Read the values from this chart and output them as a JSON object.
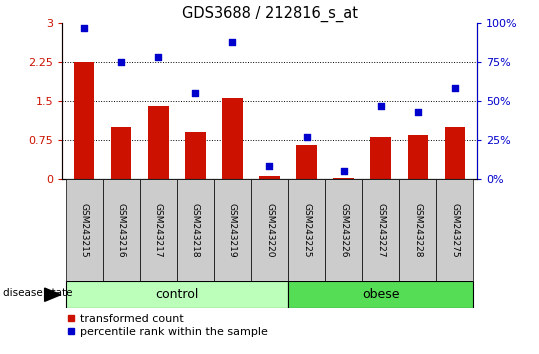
{
  "title": "GDS3688 / 212816_s_at",
  "samples": [
    "GSM243215",
    "GSM243216",
    "GSM243217",
    "GSM243218",
    "GSM243219",
    "GSM243220",
    "GSM243225",
    "GSM243226",
    "GSM243227",
    "GSM243228",
    "GSM243275"
  ],
  "transformed_count": [
    2.25,
    1.0,
    1.4,
    0.9,
    1.55,
    0.05,
    0.65,
    0.02,
    0.8,
    0.85,
    1.0
  ],
  "percentile_rank": [
    97,
    75,
    78,
    55,
    88,
    8,
    27,
    5,
    47,
    43,
    58
  ],
  "bar_color": "#cc1100",
  "dot_color": "#0000cc",
  "left_ylim": [
    0,
    3
  ],
  "right_ylim": [
    0,
    100
  ],
  "left_yticks": [
    0,
    0.75,
    1.5,
    2.25,
    3
  ],
  "right_yticks": [
    0,
    25,
    50,
    75,
    100
  ],
  "left_ytick_labels": [
    "0",
    "0.75",
    "1.5",
    "2.25",
    "3"
  ],
  "right_ytick_labels": [
    "0%",
    "25%",
    "50%",
    "75%",
    "100%"
  ],
  "hlines": [
    0.75,
    1.5,
    2.25
  ],
  "control_n": 6,
  "obese_n": 5,
  "control_label": "control",
  "obese_label": "obese",
  "disease_state_label": "disease state",
  "legend_bar_label": "transformed count",
  "legend_dot_label": "percentile rank within the sample",
  "control_color": "#bbffbb",
  "obese_color": "#55dd55",
  "xticklabel_area_color": "#cccccc",
  "bar_width": 0.55
}
